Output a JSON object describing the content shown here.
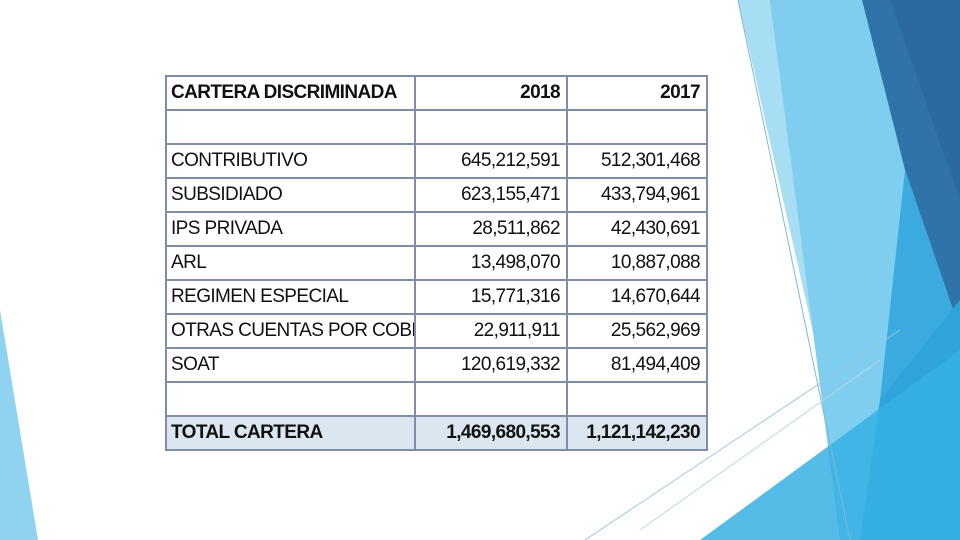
{
  "table": {
    "headers": [
      "CARTERA DISCRIMINADA",
      "2018",
      "2017"
    ],
    "rows": [
      {
        "label": "CONTRIBUTIVO",
        "y2018": "645,212,591",
        "y2017": "512,301,468"
      },
      {
        "label": "SUBSIDIADO",
        "y2018": "623,155,471",
        "y2017": "433,794,961"
      },
      {
        "label": "IPS PRIVADA",
        "y2018": "28,511,862",
        "y2017": "42,430,691"
      },
      {
        "label": "ARL",
        "y2018": "13,498,070",
        "y2017": "10,887,088"
      },
      {
        "label": "REGIMEN ESPECIAL",
        "y2018": "15,771,316",
        "y2017": "14,670,644"
      },
      {
        "label": "OTRAS CUENTAS POR COBRAR",
        "y2018": "22,911,911",
        "y2017": "25,562,969"
      },
      {
        "label": "SOAT",
        "y2018": "120,619,332",
        "y2017": "81,494,409"
      }
    ],
    "total": {
      "label": "TOTAL CARTERA",
      "y2018": "1,469,680,553",
      "y2017": "1,121,142,230"
    }
  },
  "colors": {
    "total_row_fill": "#dce6f1",
    "grid_border": "#7f8ea4",
    "accent_light": "#8fd3f0",
    "accent_mid": "#3fb4e6",
    "accent_dark": "#2a6fa6"
  }
}
